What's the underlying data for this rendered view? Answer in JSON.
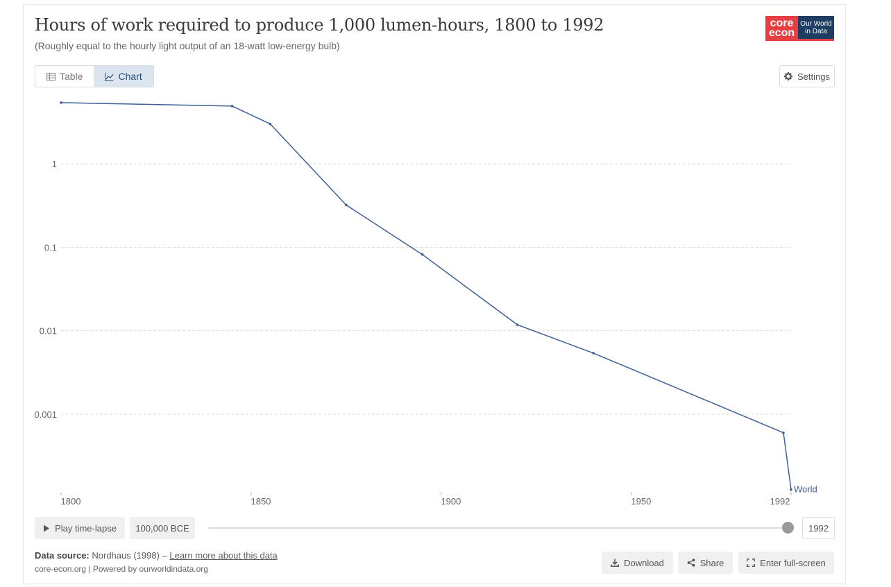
{
  "header": {
    "title": "Hours of work required to produce 1,000 lumen-hours, 1800 to 1992",
    "subtitle": "(Roughly equal to the hourly light output of an 18-watt low-energy bulb)",
    "logo_core_top": "core",
    "logo_core_bottom": "econ",
    "logo_owid_top": "Our World",
    "logo_owid_bottom": "in Data"
  },
  "tabs": [
    {
      "label": "Table",
      "icon": "table-icon",
      "active": false
    },
    {
      "label": "Chart",
      "icon": "chart-line-icon",
      "active": true
    }
  ],
  "settings_label": "Settings",
  "chart_data": {
    "type": "line",
    "title": "Hours of work required to produce 1,000 lumen-hours, 1800 to 1992",
    "subtitle": "(Roughly equal to the hourly light output of an 18-watt low-energy bulb)",
    "xlabel": "",
    "ylabel": "",
    "yscale": "log",
    "x_ticks": [
      "1800",
      "1850",
      "1900",
      "1950",
      "1992"
    ],
    "x_tick_values": [
      1800,
      1850,
      1900,
      1950,
      1992
    ],
    "y_ticks": [
      "1",
      "0.1",
      "0.01",
      "0.001"
    ],
    "y_tick_values": [
      1,
      0.1,
      0.01,
      0.001
    ],
    "xlim": [
      1800,
      1992
    ],
    "ylim": [
      8e-05,
      6
    ],
    "series": [
      {
        "name": "World",
        "color": "#3e5f94",
        "points": [
          [
            1800,
            5.4
          ],
          [
            1845,
            4.9
          ],
          [
            1855,
            3.0
          ],
          [
            1875,
            0.32
          ],
          [
            1895,
            0.082
          ],
          [
            1920,
            0.0118
          ],
          [
            1940,
            0.0054
          ],
          [
            1990,
            0.0006
          ],
          [
            1992,
            0.000125
          ]
        ]
      }
    ]
  },
  "timeline": {
    "play_label": "Play time-lapse",
    "start_label": "100,000 BCE",
    "end_label": "1992",
    "position": 1.0
  },
  "footer": {
    "source_label": "Data source:",
    "source_text": "Nordhaus (1998) – ",
    "learn_more": "Learn more about this data",
    "credits": "core-econ.org | Powered by ourworldindata.org",
    "download_label": "Download",
    "share_label": "Share",
    "fullscreen_label": "Enter full-screen"
  }
}
